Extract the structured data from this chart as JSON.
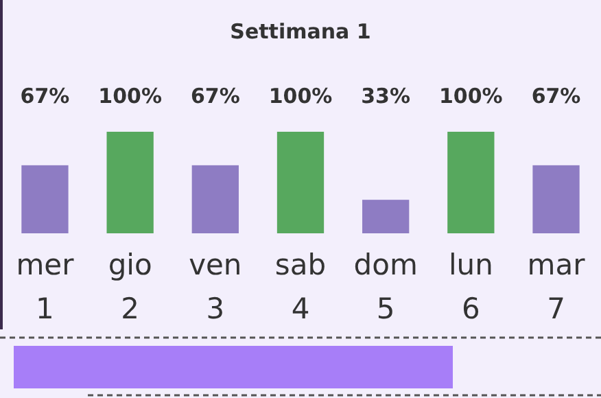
{
  "chart_data": {
    "type": "bar",
    "title": "Settimana 1",
    "categories": [
      "mer\n1",
      "gio\n2",
      "ven\n3",
      "sab\n4",
      "dom\n5",
      "lun\n6",
      "mar\n7"
    ],
    "values": [
      67,
      100,
      67,
      100,
      33,
      100,
      67
    ],
    "colors": [
      "#8e7cc3",
      "#57a85e",
      "#8e7cc3",
      "#57a85e",
      "#8e7cc3",
      "#57a85e",
      "#8e7cc3"
    ],
    "value_labels": [
      "67%",
      "100%",
      "67%",
      "100%",
      "33%",
      "100%",
      "67%"
    ]
  }
}
